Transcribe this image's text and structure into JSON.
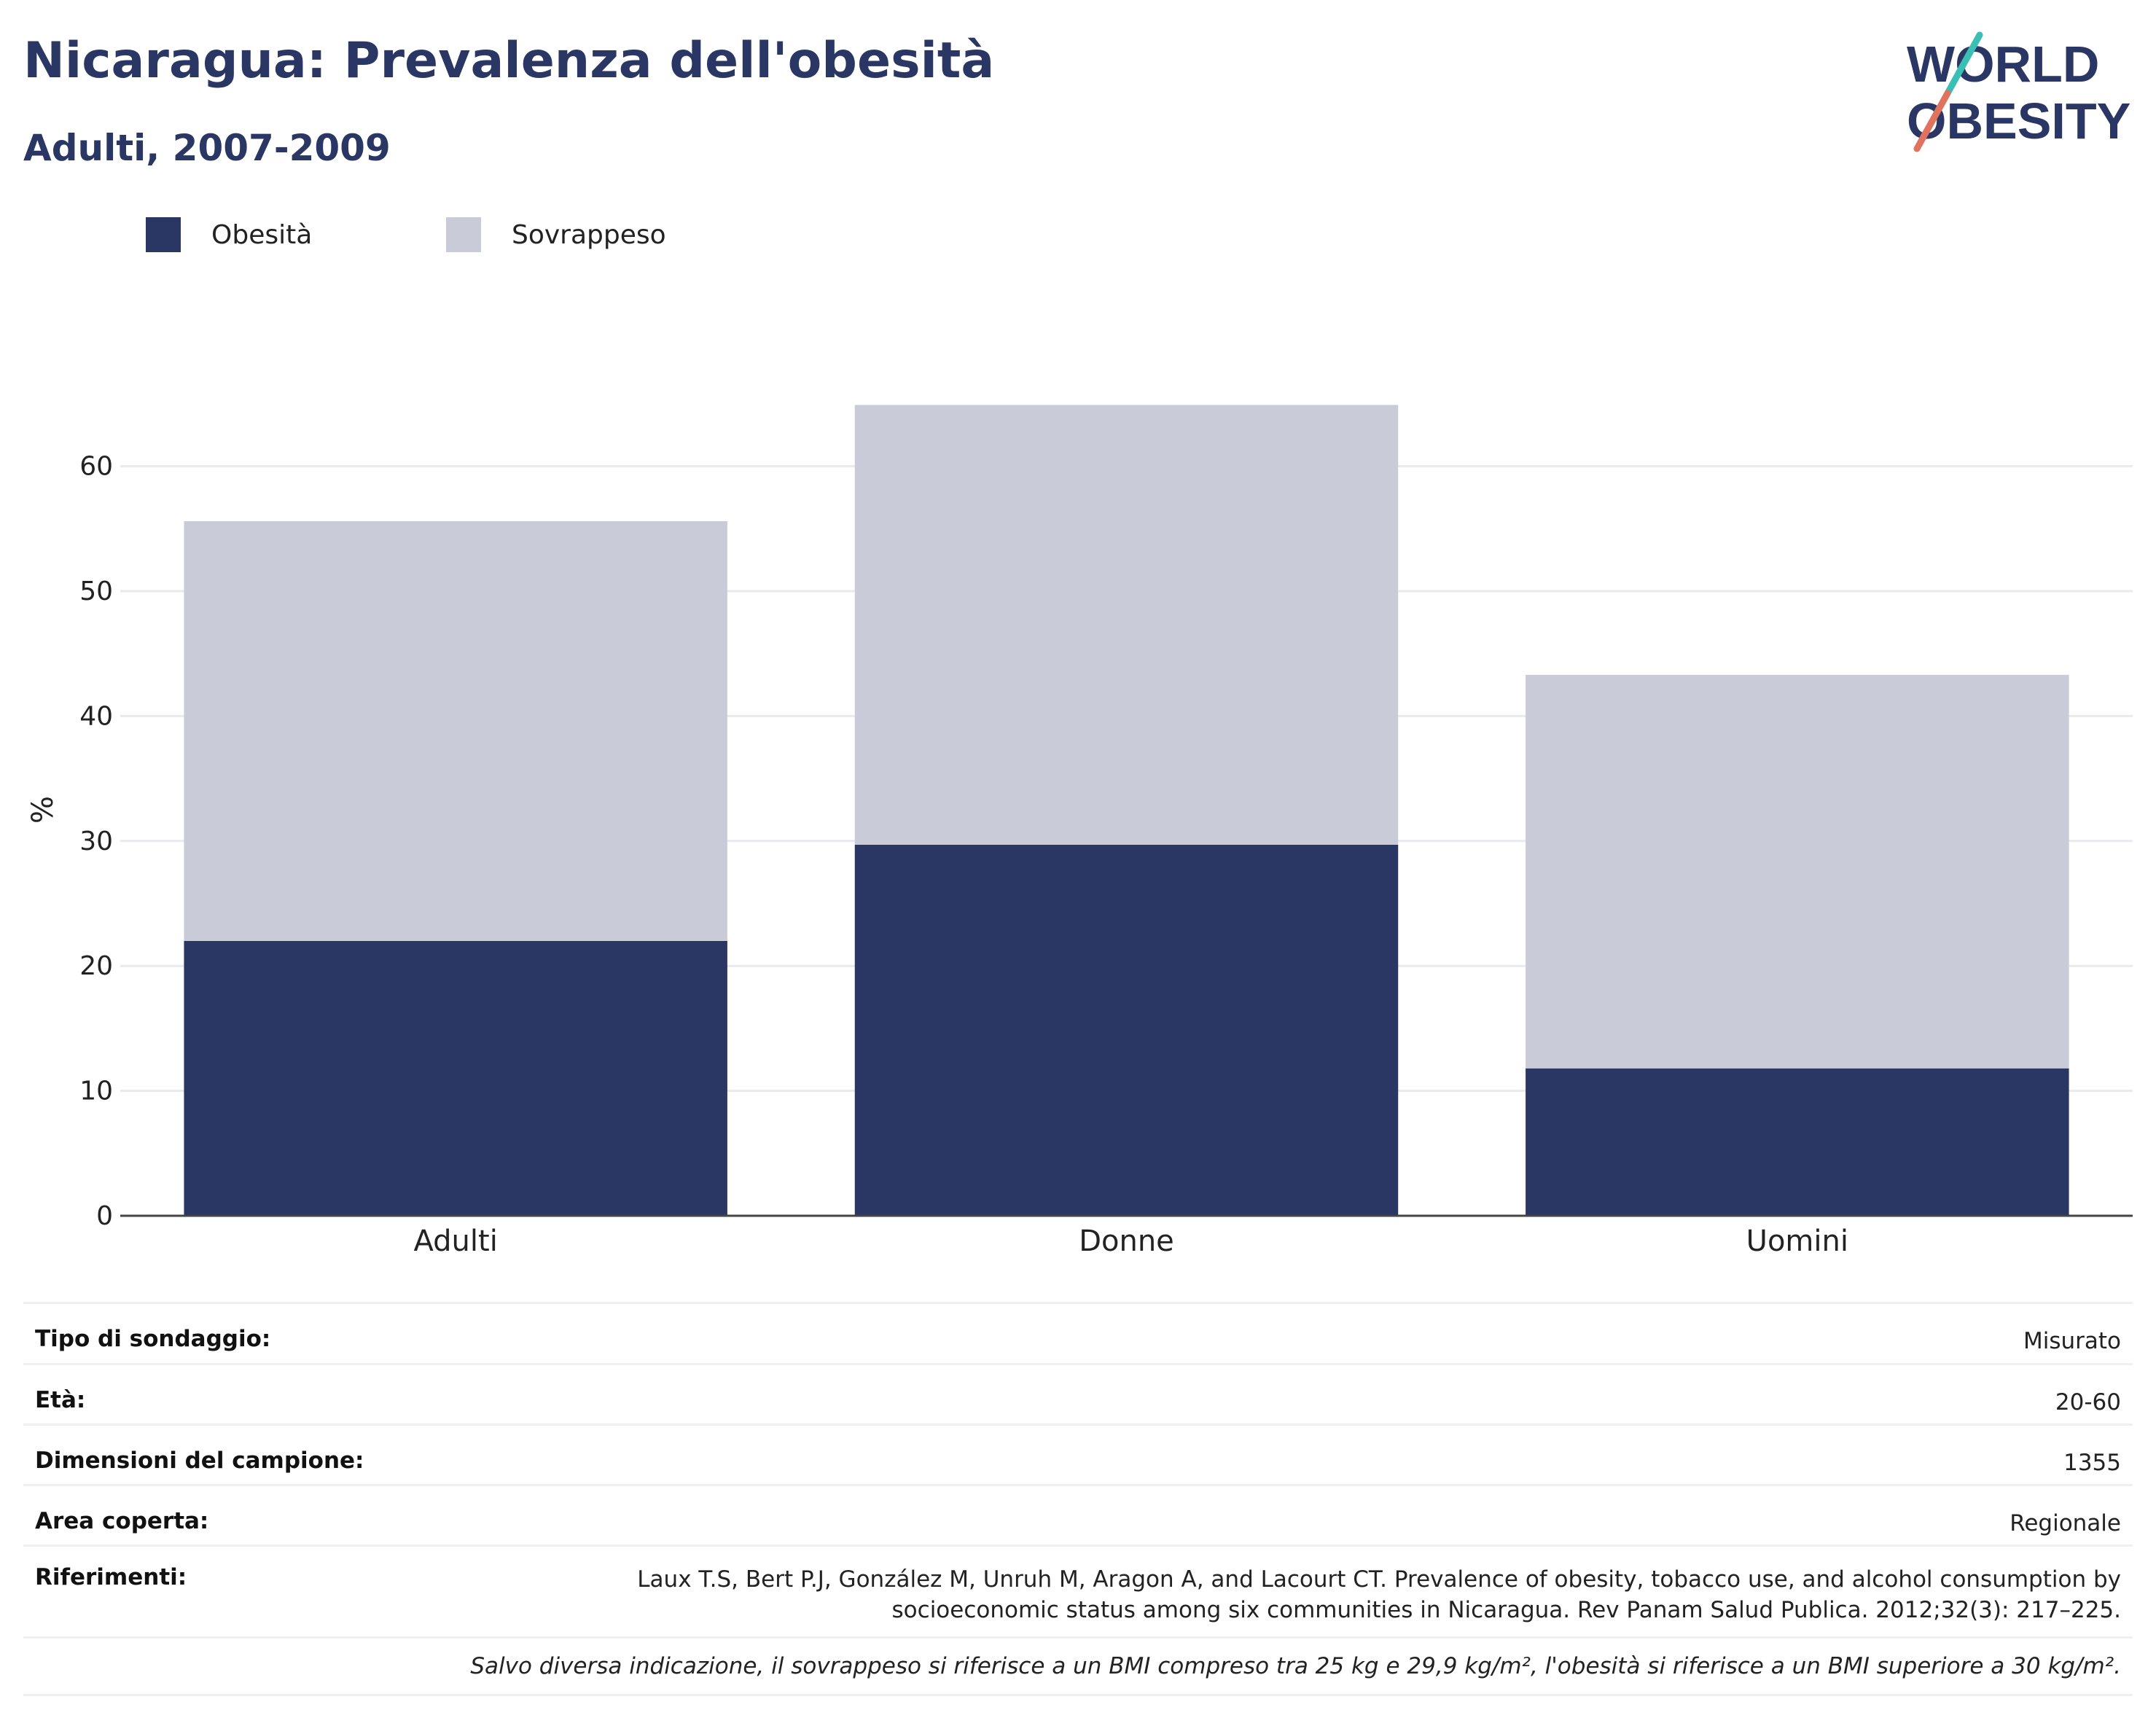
{
  "header": {
    "title": "Nicaragua: Prevalenza dell'obesità",
    "subtitle": "Adulti, 2007-2009"
  },
  "logo": {
    "line1": "WORLD",
    "line2": "OBESITY",
    "colors": {
      "text": "#2a3663",
      "slash_top": "#3bbfb5",
      "slash_bottom": "#e0735e"
    }
  },
  "legend": [
    {
      "label": "Obesità",
      "color": "#2a3663"
    },
    {
      "label": "Sovrappeso",
      "color": "#c9ccd8"
    }
  ],
  "chart_data": {
    "type": "bar",
    "stacked": true,
    "categories": [
      "Adulti",
      "Donne",
      "Uomini"
    ],
    "series": [
      {
        "name": "Obesità",
        "values": [
          22.0,
          29.7,
          11.8
        ],
        "color": "#2a3663"
      },
      {
        "name": "Sovrappeso",
        "values": [
          33.6,
          35.2,
          31.5
        ],
        "color": "#c9ccd8"
      }
    ],
    "ylabel": "%",
    "ylim": [
      0,
      65
    ],
    "yticks": [
      0,
      10,
      20,
      30,
      40,
      50,
      60
    ],
    "grid": true,
    "legend_position": "top-left"
  },
  "info": {
    "rows": [
      {
        "key": "Tipo di sondaggio:",
        "value": "Misurato"
      },
      {
        "key": "Età:",
        "value": "20-60"
      },
      {
        "key": "Dimensioni del campione:",
        "value": "1355"
      },
      {
        "key": "Area coperta:",
        "value": "Regionale"
      }
    ],
    "references_key": "Riferimenti:",
    "references_line1": "Laux T.S, Bert P.J, González M, Unruh M, Aragon A, and Lacourt CT. Prevalence of obesity, tobacco use, and alcohol consumption by",
    "references_line2": "socioeconomic status among six communities in Nicaragua. Rev Panam Salud Publica. 2012;32(3): 217–225.",
    "note": "Salvo diversa indicazione, il sovrappeso si riferisce a un BMI compreso tra 25 kg e 29,9 kg/m², l'obesità si riferisce a un BMI superiore a 30 kg/m²."
  }
}
